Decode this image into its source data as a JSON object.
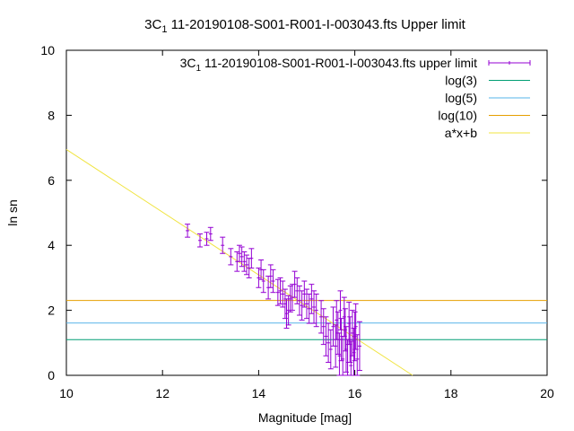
{
  "chart_data": {
    "type": "scatter",
    "title": "3C_1 11-20190108-S001-R001-I-003043.fts Upper limit",
    "title_parts": {
      "prefix": "3C",
      "subscript": "1",
      "suffix": " 11-20190108-S001-R001-I-003043.fts Upper limit"
    },
    "xlabel": "Magnitude [mag]",
    "ylabel": "ln sn",
    "xlim": [
      10,
      20
    ],
    "ylim": [
      0,
      10
    ],
    "x_ticks": [
      "10",
      "12",
      "14",
      "16",
      "18",
      "20"
    ],
    "y_ticks": [
      "0",
      "2",
      "4",
      "6",
      "8",
      "10"
    ],
    "grid": false,
    "legend_placement": "top-right",
    "series": [
      {
        "name": "3C_1 11-20190108-S001-R001-I-003043.fts upper limit",
        "name_parts": {
          "prefix": "3C",
          "subscript": "1",
          "suffix": " 11-20190108-S001-R001-I-003043.fts upper limit"
        },
        "kind": "errorbars",
        "color": "#9400d3",
        "x": [
          12.52,
          12.78,
          12.92,
          13.0,
          13.25,
          13.42,
          13.55,
          13.6,
          13.65,
          13.7,
          13.75,
          13.8,
          13.85,
          14.0,
          14.05,
          14.1,
          14.2,
          14.25,
          14.3,
          14.4,
          14.45,
          14.5,
          14.55,
          14.58,
          14.62,
          14.66,
          14.7,
          14.75,
          14.8,
          14.85,
          14.9,
          14.95,
          15.0,
          15.05,
          15.1,
          15.15,
          15.2,
          15.3,
          15.35,
          15.4,
          15.45,
          15.5,
          15.55,
          15.6,
          15.62,
          15.65,
          15.68,
          15.7,
          15.72,
          15.75,
          15.78,
          15.8,
          15.82,
          15.85,
          15.88,
          15.9,
          15.92,
          15.95,
          15.98,
          16.0,
          16.02,
          16.05,
          16.1
        ],
        "y": [
          4.45,
          4.15,
          4.2,
          4.35,
          4.0,
          3.65,
          3.5,
          3.75,
          3.65,
          3.5,
          3.4,
          3.3,
          3.6,
          3.0,
          3.25,
          2.9,
          2.7,
          3.05,
          2.9,
          2.55,
          2.6,
          2.5,
          2.2,
          1.9,
          2.0,
          2.35,
          2.4,
          2.8,
          2.6,
          2.3,
          2.15,
          2.5,
          2.2,
          2.05,
          2.35,
          2.1,
          2.0,
          1.8,
          1.5,
          1.2,
          1.0,
          0.8,
          1.5,
          0.9,
          1.7,
          1.3,
          0.6,
          2.0,
          1.1,
          0.5,
          1.8,
          1.4,
          0.8,
          0.4,
          1.6,
          1.1,
          0.3,
          1.3,
          0.7,
          1.2,
          1.5,
          0.5,
          0.9
        ],
        "yerr": [
          0.2,
          0.2,
          0.2,
          0.2,
          0.25,
          0.25,
          0.3,
          0.25,
          0.3,
          0.3,
          0.3,
          0.3,
          0.3,
          0.3,
          0.3,
          0.35,
          0.35,
          0.35,
          0.35,
          0.4,
          0.4,
          0.4,
          0.45,
          0.45,
          0.45,
          0.4,
          0.4,
          0.4,
          0.4,
          0.45,
          0.45,
          0.4,
          0.45,
          0.45,
          0.45,
          0.5,
          0.5,
          0.5,
          0.55,
          0.6,
          0.6,
          0.6,
          0.6,
          0.65,
          0.6,
          0.65,
          0.7,
          0.6,
          0.65,
          0.7,
          0.6,
          0.65,
          0.7,
          0.7,
          0.65,
          0.7,
          0.75,
          0.7,
          0.75,
          0.75,
          0.7,
          0.75,
          0.75
        ]
      },
      {
        "name": "log(3)",
        "kind": "hline",
        "y": 1.0986,
        "color": "#009e73"
      },
      {
        "name": "log(5)",
        "kind": "hline",
        "y": 1.6094,
        "color": "#56b4e9"
      },
      {
        "name": "log(10)",
        "kind": "hline",
        "y": 2.3026,
        "color": "#e69f00"
      },
      {
        "name": "a*x+b",
        "kind": "fitline",
        "slope": -0.965,
        "intercept": 16.6,
        "color": "#f0e442"
      }
    ]
  }
}
